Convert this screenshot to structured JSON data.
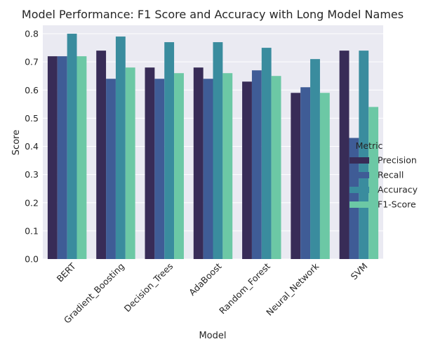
{
  "chart_data": {
    "type": "bar",
    "title": "Model Performance: F1 Score and Accuracy with Long Model Names",
    "xlabel": "Model",
    "ylabel": "Score",
    "categories": [
      "BERT",
      "Gradient_Boosting",
      "Decision_Trees",
      "AdaBoost",
      "Random_Forest",
      "Neural_Network",
      "SVM"
    ],
    "series": [
      {
        "name": "Precision",
        "color": "#382c57",
        "values": [
          0.72,
          0.74,
          0.68,
          0.68,
          0.63,
          0.59,
          0.74
        ]
      },
      {
        "name": "Recall",
        "color": "#3f5c96",
        "values": [
          0.72,
          0.64,
          0.64,
          0.64,
          0.67,
          0.61,
          0.43
        ]
      },
      {
        "name": "Accuracy",
        "color": "#3a8c9e",
        "values": [
          0.8,
          0.79,
          0.77,
          0.77,
          0.75,
          0.71,
          0.74
        ]
      },
      {
        "name": "F1-Score",
        "color": "#6cc8a5",
        "values": [
          0.72,
          0.68,
          0.66,
          0.66,
          0.65,
          0.59,
          0.54
        ]
      }
    ],
    "yticks": [
      "0.0",
      "0.1",
      "0.2",
      "0.3",
      "0.4",
      "0.5",
      "0.6",
      "0.7",
      "0.8"
    ],
    "ylim": [
      0,
      0.83
    ],
    "grid": true,
    "legend": {
      "title": "Metric",
      "placement": "right"
    },
    "background": "#eaeaf2"
  }
}
